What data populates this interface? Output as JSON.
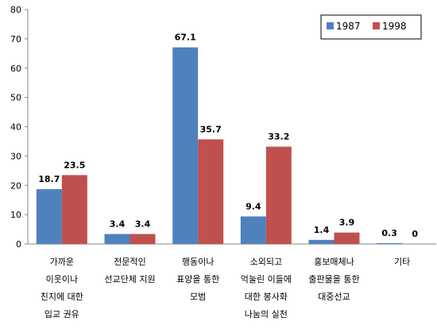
{
  "chart_data": {
    "type": "bar",
    "categories": [
      [
        "가까운",
        "이웃이나",
        "친지에 대한",
        "입교 권유"
      ],
      [
        "전문적인",
        "선교단체 지원"
      ],
      [
        "행동이나",
        "표양을 통한",
        "모범"
      ],
      [
        "소외되고",
        "억눌린 이들에",
        "대한 봉사화",
        "나눔의 실천"
      ],
      [
        "홍보매체나",
        "출판물을 통한",
        "대중선교"
      ],
      [
        "기타"
      ]
    ],
    "series": [
      {
        "name": "1987",
        "color": "#4f81bd",
        "values": [
          18.7,
          3.4,
          67.1,
          9.4,
          1.4,
          0.3
        ],
        "labels": [
          "18.7",
          "3.4",
          "67.1",
          "9.4",
          "1.4",
          "0.3"
        ]
      },
      {
        "name": "1998",
        "color": "#c0504d",
        "values": [
          23.5,
          3.4,
          35.7,
          33.2,
          3.9,
          0
        ],
        "labels": [
          "23.5",
          "3.4",
          "35.7",
          "33.2",
          "3.9",
          "0"
        ]
      }
    ],
    "ylim": [
      0,
      80
    ],
    "yticks": [
      "0",
      "10",
      "20",
      "30",
      "40",
      "50",
      "60",
      "70",
      "80"
    ],
    "grid": false,
    "legend_position": "top-right"
  }
}
